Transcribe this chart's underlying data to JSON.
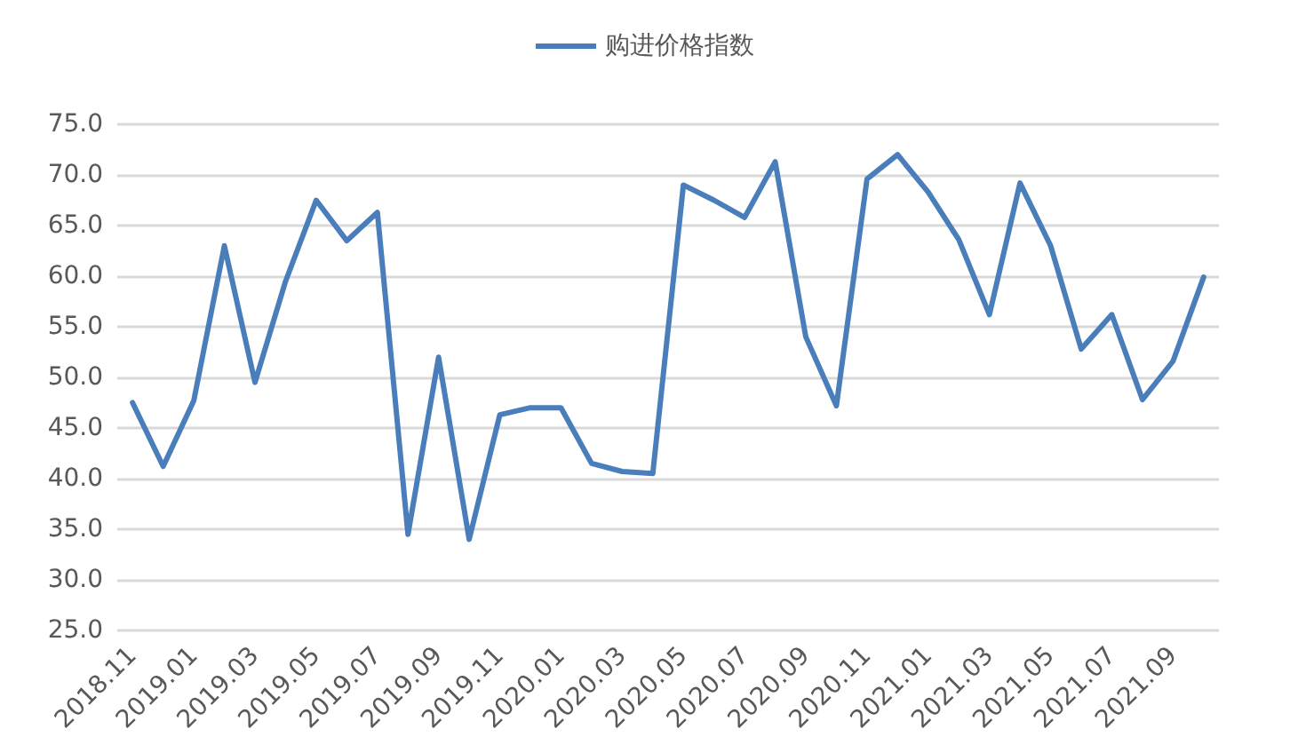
{
  "chart_data": {
    "type": "line",
    "categories": [
      "2018.11",
      null,
      "2019.01",
      null,
      "2019.03",
      null,
      "2019.05",
      null,
      "2019.07",
      null,
      "2019.09",
      null,
      "2019.11",
      null,
      "2020.01",
      null,
      "2020.03",
      null,
      "2020.05",
      null,
      "2020.07",
      null,
      "2020.09",
      null,
      "2020.11",
      null,
      "2021.01",
      null,
      "2021.03",
      null,
      "2021.05",
      null,
      "2021.07",
      null,
      "2021.09",
      null
    ],
    "series": [
      {
        "name": "购进价格指数",
        "color": "#4a7ebb",
        "values": [
          47.5,
          41.2,
          47.7,
          63.0,
          49.5,
          59.5,
          67.5,
          63.5,
          66.3,
          34.5,
          52.0,
          34.0,
          46.3,
          47.0,
          47.0,
          41.5,
          40.7,
          40.5,
          69.0,
          67.5,
          65.8,
          71.3,
          54.0,
          47.2,
          69.6,
          72.0,
          68.3,
          63.6,
          56.2,
          69.2,
          63.0,
          52.8,
          56.2,
          47.8,
          51.6,
          59.9
        ]
      }
    ],
    "ylim": [
      25,
      75
    ],
    "yticks": [
      {
        "value": 25,
        "label": "25.0"
      },
      {
        "value": 30,
        "label": "30.0"
      },
      {
        "value": 35,
        "label": "35.0"
      },
      {
        "value": 40,
        "label": "40.0"
      },
      {
        "value": 45,
        "label": "45.0"
      },
      {
        "value": 50,
        "label": "50.0"
      },
      {
        "value": 55,
        "label": "55.0"
      },
      {
        "value": 60,
        "label": "60.0"
      },
      {
        "value": 65,
        "label": "65.0"
      },
      {
        "value": 70,
        "label": "70.0"
      },
      {
        "value": 75,
        "label": "75.0"
      }
    ],
    "grid": "y",
    "legend": "top",
    "marker": "none",
    "line_style": "solid"
  }
}
